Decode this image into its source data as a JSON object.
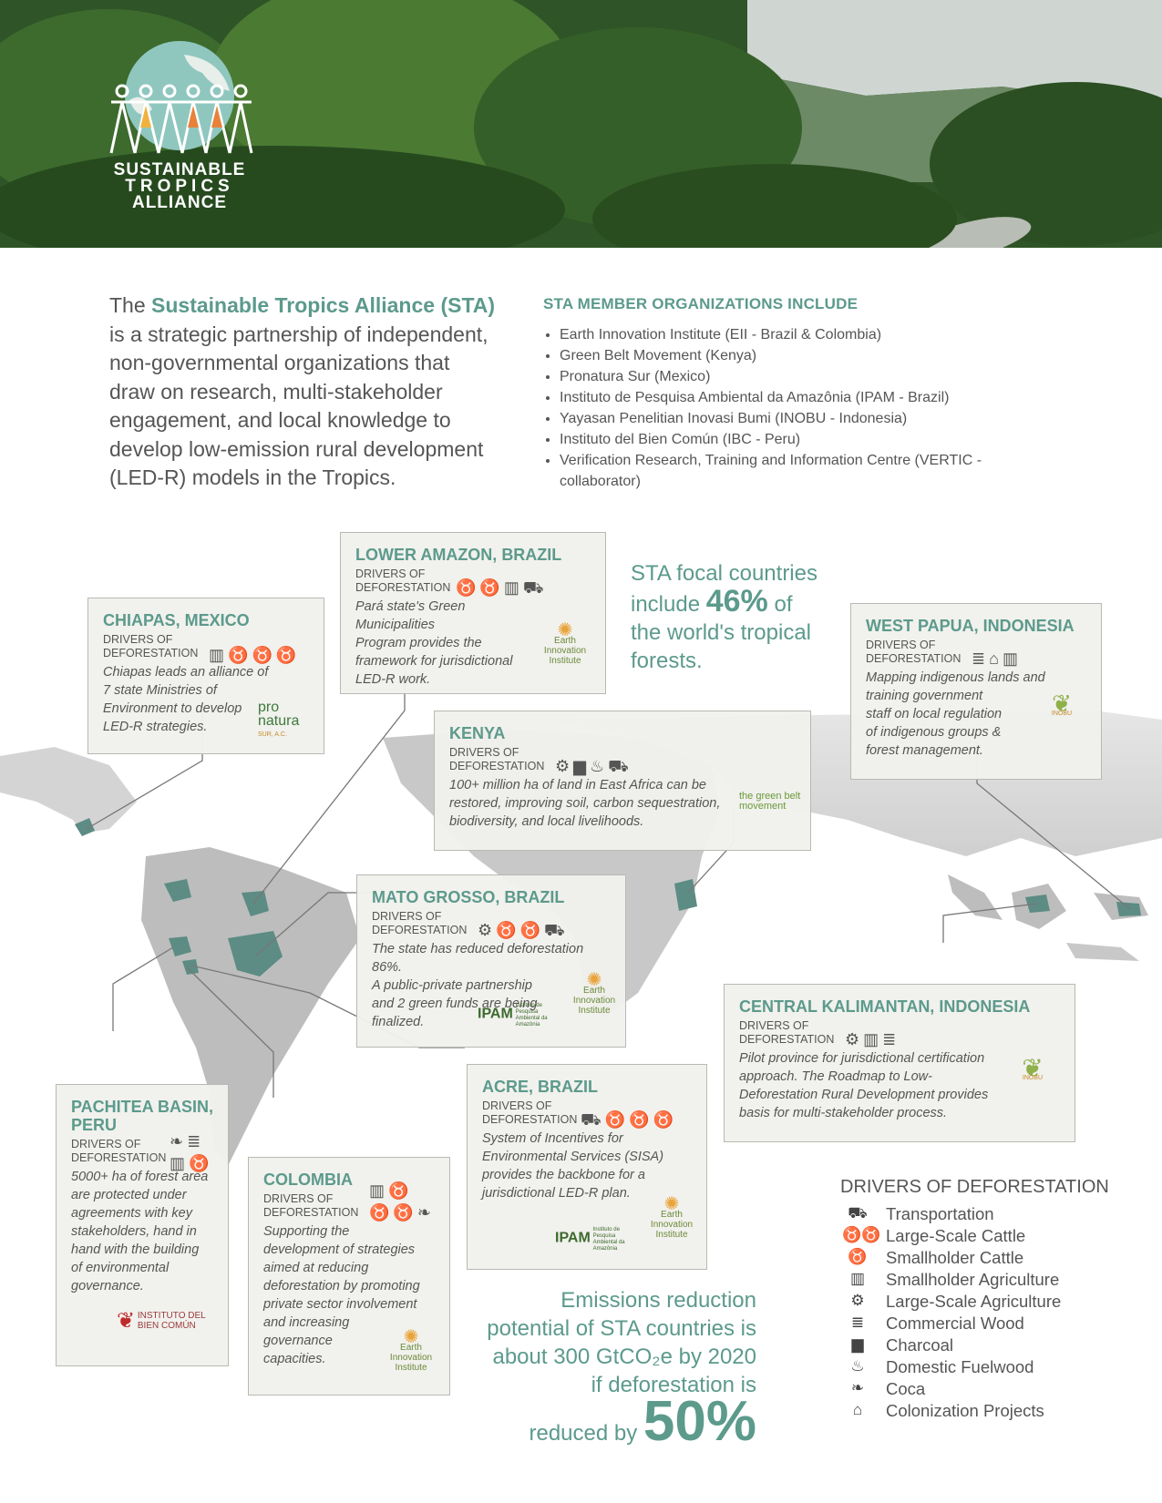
{
  "brand": {
    "line1": "SUSTAINABLE",
    "line2": "TROPICS",
    "line3": "ALLIANCE"
  },
  "intro": {
    "prefix": "The ",
    "highlight": "Sustainable Tropics Alliance (STA)",
    "lines": [
      "is a strategic partnership of independent,",
      "non-governmental organizations that",
      "draw on research, multi-stakeholder",
      "engagement, and local knowledge to",
      "develop low-emission rural development",
      "(LED-R) models in the Tropics."
    ]
  },
  "members": {
    "heading": "STA MEMBER ORGANIZATIONS INCLUDE",
    "items": [
      "Earth Innovation Institute (EII - Brazil & Colombia)",
      "Green Belt Movement (Kenya)",
      "Pronatura Sur (Mexico)",
      "Instituto de Pesquisa Ambiental da Amazônia (IPAM - Brazil)",
      "Yayasan Penelitian Inovasi Bumi (INOBU - Indonesia)",
      "Instituto del Bien Común (IBC - Peru)",
      "Verification Research, Training and Information Centre (VERTIC - collaborator)"
    ]
  },
  "drivers_label_1": "DRIVERS OF",
  "drivers_label_2": "DEFORESTATION",
  "regions": {
    "chiapas": {
      "title": "CHIAPAS, MEXICO",
      "desc": [
        "Chiapas leads an alliance of",
        "7 state Ministries of",
        "Environment to develop",
        "LED-R strategies."
      ],
      "logo": "pro natura",
      "logo_sub": "SUR, A.C."
    },
    "lower_amazon": {
      "title": "LOWER AMAZON, BRAZIL",
      "desc": [
        "Pará state's Green Municipalities",
        "Program provides the",
        "framework for jurisdictional",
        "LED-R work."
      ],
      "logo": "Earth Innovation Institute"
    },
    "kenya": {
      "title": "KENYA",
      "desc": [
        "100+ million ha of land in East Africa can be",
        "restored, improving soil, carbon sequestration,",
        "biodiversity, and local livelihoods."
      ],
      "logo": "the green belt movement"
    },
    "west_papua": {
      "title": "WEST PAPUA, INDONESIA",
      "desc": [
        "Mapping indigenous lands and",
        "training government",
        "staff on local regulation",
        "of indigenous groups &",
        "forest management."
      ],
      "logo": "INOBU"
    },
    "mato_grosso": {
      "title": "MATO GROSSO, BRAZIL",
      "desc": [
        "The state has reduced deforestation 86%.",
        "A public-private partnership",
        "and 2 green funds are being",
        "finalized."
      ],
      "logo": "IPAM",
      "logo_sub": "Instituto de Pesquisa Ambiental da Amazônia",
      "logo2": "Earth Innovation Institute"
    },
    "central_kalimantan": {
      "title": "CENTRAL KALIMANTAN, INDONESIA",
      "desc": [
        "Pilot province for jurisdictional certification",
        "approach. The Roadmap to Low-",
        "Deforestation Rural Development provides",
        "basis for multi-stakeholder process."
      ],
      "logo": "INOBU"
    },
    "pachitea": {
      "title": "PACHITEA BASIN,",
      "title2": "PERU",
      "desc": [
        "5000+ ha of forest area",
        "are protected under",
        "agreements with key",
        "stakeholders, hand in",
        "hand with the building",
        "of environmental",
        "governance."
      ],
      "logo": "INSTITUTO DEL",
      "logo_sub": "BIEN COMÚN"
    },
    "colombia": {
      "title": "COLOMBIA",
      "desc": [
        "Supporting the",
        "development of strategies",
        "aimed at reducing",
        "deforestation by promoting",
        "private sector involvement",
        "and increasing",
        "governance",
        "capacities."
      ],
      "logo": "Earth Innovation Institute"
    },
    "acre": {
      "title": "ACRE, BRAZIL",
      "desc": [
        "System of Incentives for",
        "Environmental Services (SISA)",
        "provides the backbone for a",
        "jurisdictional LED-R plan."
      ],
      "logo": "IPAM",
      "logo_sub": "Instituto de Pesquisa Ambiental da Amazônia",
      "logo2": "Earth Innovation Institute"
    }
  },
  "stat_forests": {
    "l1": "STA focal countries",
    "l2a": "include ",
    "big": "46%",
    "l2b": " of",
    "l3": "the world's tropical",
    "l4": "forests."
  },
  "stat_emissions": {
    "l1": "Emissions reduction",
    "l2": "potential of STA countries is",
    "l3": "about 300 GtCO₂e by 2020",
    "l4": "if deforestation is",
    "l5": "reduced by ",
    "big": "50%"
  },
  "legend": {
    "title": "DRIVERS OF DEFORESTATION",
    "items": [
      {
        "label": "Transportation",
        "icon": "truck-icon"
      },
      {
        "label": "Large-Scale Cattle",
        "icon": "cattle-herd-icon"
      },
      {
        "label": "Smallholder Cattle",
        "icon": "cow-icon"
      },
      {
        "label": "Smallholder Agriculture",
        "icon": "farm-icon"
      },
      {
        "label": "Large-Scale Agriculture",
        "icon": "tractor-icon"
      },
      {
        "label": "Commercial Wood",
        "icon": "logs-icon"
      },
      {
        "label": "Charcoal",
        "icon": "charcoal-icon"
      },
      {
        "label": "Domestic Fuelwood",
        "icon": "fire-icon"
      },
      {
        "label": "Coca",
        "icon": "leaf-icon"
      },
      {
        "label": "Colonization Projects",
        "icon": "house-icon"
      }
    ]
  }
}
